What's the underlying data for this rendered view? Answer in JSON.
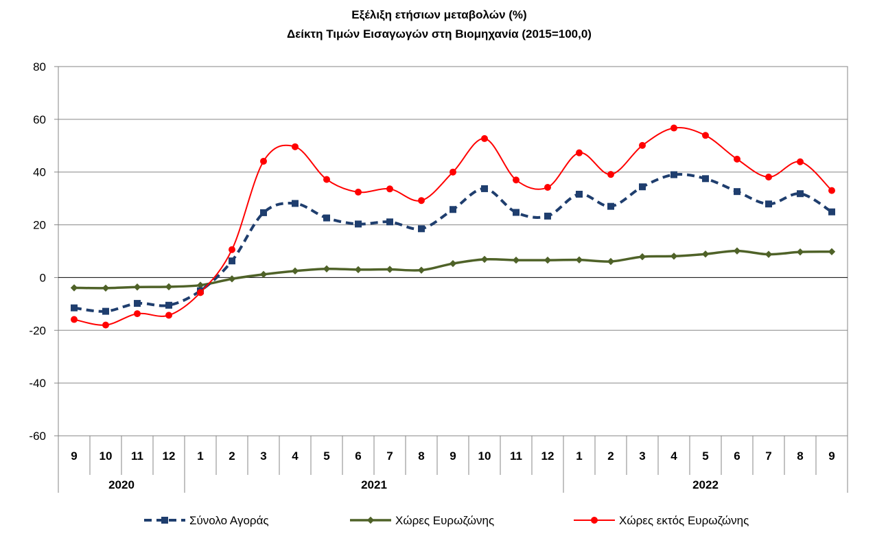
{
  "chart_data": {
    "type": "line",
    "title": "Εξέλιξη ετήσιων μεταβολών (%)",
    "subtitle": "Δείκτη Τιμών Εισαγωγών στη Βιομηχανία (2015=100,0)",
    "categories": [
      "9",
      "10",
      "11",
      "12",
      "1",
      "2",
      "3",
      "4",
      "5",
      "6",
      "7",
      "8",
      "9",
      "10",
      "11",
      "12",
      "1",
      "2",
      "3",
      "4",
      "5",
      "6",
      "7",
      "8",
      "9"
    ],
    "years": [
      {
        "label": "2020",
        "start": 0,
        "end": 3
      },
      {
        "label": "2021",
        "start": 4,
        "end": 15
      },
      {
        "label": "2022",
        "start": 16,
        "end": 24
      }
    ],
    "ylim": [
      -60,
      80
    ],
    "yticks": [
      -60,
      -40,
      -20,
      0,
      20,
      40,
      60,
      80
    ],
    "grid": {
      "horizontal": true,
      "vertical": false
    },
    "legend_position": "bottom",
    "series": [
      {
        "name": "Σύνολο Αγοράς",
        "color": "#1F3E6E",
        "style": "dashed",
        "marker": "square",
        "values": [
          -11.5,
          -12.8,
          -9.8,
          -10.5,
          -5.0,
          6.3,
          24.6,
          28.1,
          22.6,
          20.3,
          21.1,
          18.5,
          25.8,
          33.7,
          24.7,
          23.3,
          31.6,
          27.0,
          34.4,
          39.0,
          37.5,
          32.6,
          27.9,
          31.8,
          24.9
        ]
      },
      {
        "name": "Χώρες Ευρωζώνης",
        "color": "#4F6228",
        "style": "solid",
        "marker": "diamond",
        "values": [
          -3.9,
          -4.0,
          -3.6,
          -3.5,
          -2.9,
          -0.5,
          1.2,
          2.5,
          3.3,
          3.0,
          3.1,
          2.8,
          5.3,
          6.9,
          6.6,
          6.6,
          6.7,
          6.1,
          7.9,
          8.1,
          8.9,
          10.1,
          8.8,
          9.7,
          9.8
        ]
      },
      {
        "name": "Χώρες εκτός Ευρωζώνης",
        "color": "#FF0000",
        "style": "solid",
        "marker": "circle",
        "values": [
          -15.9,
          -18.0,
          -13.7,
          -14.3,
          -5.7,
          10.6,
          44.1,
          49.6,
          37.2,
          32.4,
          33.6,
          29.2,
          40.0,
          52.7,
          37.0,
          34.2,
          47.3,
          39.1,
          50.1,
          56.7,
          53.9,
          44.9,
          38.1,
          43.9,
          33.0
        ]
      }
    ]
  }
}
